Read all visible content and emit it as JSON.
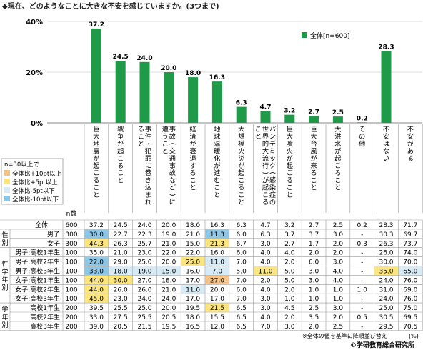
{
  "title": "◆現在、どのようなことに大きな不安を感じていますか。(3つまで)",
  "legend": {
    "label": "全体[n=600]",
    "color": "#1f9a48"
  },
  "nlegend": {
    "title": "n=30以上で",
    "items": [
      {
        "label": "全体比+10pt以上",
        "color": "#f4c38a"
      },
      {
        "label": "全体比+5pt以上",
        "color": "#fbe57c"
      },
      {
        "label": "全体比-5pt以下",
        "color": "#d6ebf6"
      },
      {
        "label": "全体比-10pt以下",
        "color": "#8ec6e6"
      }
    ]
  },
  "n_header": "n数",
  "pct_symbol": "(%)",
  "footnote": "※全体の値を基準に降順並び替え",
  "source": "©学研教育総合研究所",
  "chart_data": {
    "type": "bar",
    "ylim": [
      0,
      40
    ],
    "yticks": [
      "0%",
      "20%",
      "40%"
    ],
    "categories": [
      "巨大地震が起こること",
      "戦争が起こること",
      "事件・犯罪に巻き込まれること",
      "事故(交通事故など)に遭うこと",
      "経済が衰退すること",
      "地球温暖化が進むこと",
      "大規模火災が起こること",
      "パンデミック(感染症の世界的大流行)が起こること",
      "巨大噴火が起こること",
      "巨大台風が来ること",
      "大洪水が起こること",
      "その他",
      "不安はない",
      "不安がある"
    ],
    "series": [
      {
        "name": "全体[n=600]",
        "values": [
          37.2,
          24.5,
          24.0,
          20.0,
          18.0,
          16.3,
          6.3,
          4.7,
          3.2,
          2.7,
          2.5,
          0.2,
          28.3,
          null
        ]
      }
    ]
  },
  "table": {
    "rows": [
      {
        "g1": "",
        "g2": "全体",
        "n": "600",
        "vals": [
          "37.2",
          "24.5",
          "24.0",
          "20.0",
          "18.0",
          "16.3",
          "6.3",
          "4.7",
          "3.2",
          "2.7",
          "2.5",
          "0.2",
          "28.3",
          "71.7"
        ],
        "hl": [
          "",
          "",
          "",
          "",
          "",
          "",
          "",
          "",
          "",
          "",
          "",
          "",
          "",
          ""
        ]
      },
      {
        "g1": "性別",
        "g2": "男子",
        "n": "300",
        "vals": [
          "30.0",
          "22.7",
          "22.3",
          "19.0",
          "21.0",
          "11.3",
          "6.0",
          "6.3",
          "3.7",
          "3.7",
          "3.0",
          "-",
          "30.3",
          "69.7"
        ],
        "hl": [
          "d10",
          "",
          "",
          "",
          "",
          "d10",
          "",
          "",
          "",
          "",
          "",
          "",
          "",
          ""
        ]
      },
      {
        "g1": "",
        "g2": "女子",
        "n": "300",
        "vals": [
          "44.3",
          "26.3",
          "25.7",
          "21.0",
          "15.0",
          "21.3",
          "6.7",
          "3.0",
          "2.7",
          "1.7",
          "2.0",
          "0.3",
          "26.3",
          "73.7"
        ],
        "hl": [
          "p5",
          "",
          "",
          "",
          "",
          "p5",
          "",
          "",
          "",
          "",
          "",
          "",
          "",
          ""
        ]
      },
      {
        "g1": "性・学年別",
        "g2": "男子:高校1年生",
        "n": "100",
        "vals": [
          "35.0",
          "21.0",
          "23.0",
          "22.0",
          "22.0",
          "16.0",
          "6.0",
          "4.0",
          "4.0",
          "2.0",
          "2.0",
          "-",
          "26.0",
          "74.0"
        ],
        "hl": [
          "",
          "",
          "",
          "",
          "",
          "",
          "",
          "",
          "",
          "",
          "",
          "",
          "",
          ""
        ]
      },
      {
        "g1": "",
        "g2": "男子:高校2年生",
        "n": "100",
        "vals": [
          "22.0",
          "29.0",
          "25.0",
          "20.0",
          "25.0",
          "11.0",
          "7.0",
          "4.0",
          "2.0",
          "6.0",
          "3.0",
          "-",
          "30.0",
          "70.0"
        ],
        "hl": [
          "d10",
          "",
          "",
          "",
          "p5",
          "d5",
          "",
          "",
          "",
          "",
          "",
          "",
          "",
          ""
        ]
      },
      {
        "g1": "",
        "g2": "男子:高校3年生",
        "n": "100",
        "vals": [
          "33.0",
          "18.0",
          "19.0",
          "15.0",
          "16.0",
          "7.0",
          "5.0",
          "11.0",
          "5.0",
          "3.0",
          "4.0",
          "-",
          "35.0",
          "65.0"
        ],
        "hl": [
          "d10",
          "d5",
          "d5",
          "d5",
          "",
          "d5",
          "",
          "p5",
          "",
          "",
          "",
          "",
          "p5",
          "d5"
        ]
      },
      {
        "g1": "",
        "g2": "女子:高校1年生",
        "n": "100",
        "vals": [
          "44.0",
          "30.0",
          "27.0",
          "18.0",
          "17.0",
          "27.0",
          "7.0",
          "2.0",
          "5.0",
          "3.0",
          "4.0",
          "-",
          "24.0",
          "76.0"
        ],
        "hl": [
          "p5",
          "p5",
          "",
          "",
          "",
          "p10",
          "",
          "",
          "",
          "",
          "",
          "",
          "",
          ""
        ]
      },
      {
        "g1": "",
        "g2": "女子:高校2年生",
        "n": "100",
        "vals": [
          "44.0",
          "26.0",
          "26.0",
          "21.0",
          "11.0",
          "20.0",
          "6.0",
          "4.0",
          "2.0",
          "1.0",
          "1.0",
          "1.0",
          "31.0",
          "69.0"
        ],
        "hl": [
          "p5",
          "",
          "",
          "",
          "d5",
          "",
          "",
          "",
          "",
          "",
          "",
          "",
          "",
          ""
        ]
      },
      {
        "g1": "",
        "g2": "女子:高校3年生",
        "n": "100",
        "vals": [
          "45.0",
          "23.0",
          "24.0",
          "24.0",
          "17.0",
          "17.0",
          "7.0",
          "3.0",
          "1.0",
          "1.0",
          "1.0",
          "-",
          "24.0",
          "76.0"
        ],
        "hl": [
          "p5",
          "",
          "",
          "",
          "",
          "",
          "",
          "",
          "",
          "",
          "",
          "",
          "",
          ""
        ]
      },
      {
        "g1": "学年別",
        "g2": "高校1年生",
        "n": "200",
        "vals": [
          "39.5",
          "25.5",
          "25.0",
          "20.0",
          "19.5",
          "21.5",
          "6.5",
          "3.0",
          "4.5",
          "2.5",
          "3.0",
          "-",
          "25.0",
          "75.0"
        ],
        "hl": [
          "",
          "",
          "",
          "",
          "",
          "p5",
          "",
          "",
          "",
          "",
          "",
          "",
          "",
          ""
        ]
      },
      {
        "g1": "",
        "g2": "高校2年生",
        "n": "200",
        "vals": [
          "33.0",
          "27.5",
          "25.5",
          "20.5",
          "18.0",
          "15.5",
          "6.5",
          "4.0",
          "2.0",
          "3.5",
          "2.0",
          "0.5",
          "30.5",
          "69.5"
        ],
        "hl": [
          "",
          "",
          "",
          "",
          "",
          "",
          "",
          "",
          "",
          "",
          "",
          "",
          "",
          ""
        ]
      },
      {
        "g1": "",
        "g2": "高校3年生",
        "n": "200",
        "vals": [
          "39.0",
          "20.5",
          "21.5",
          "19.5",
          "16.5",
          "12.0",
          "6.5",
          "7.0",
          "3.0",
          "2.0",
          "2.5",
          "-",
          "29.5",
          "70.5"
        ],
        "hl": [
          "",
          "",
          "",
          "",
          "",
          "",
          "",
          "",
          "",
          "",
          "",
          "",
          "",
          ""
        ]
      }
    ]
  }
}
